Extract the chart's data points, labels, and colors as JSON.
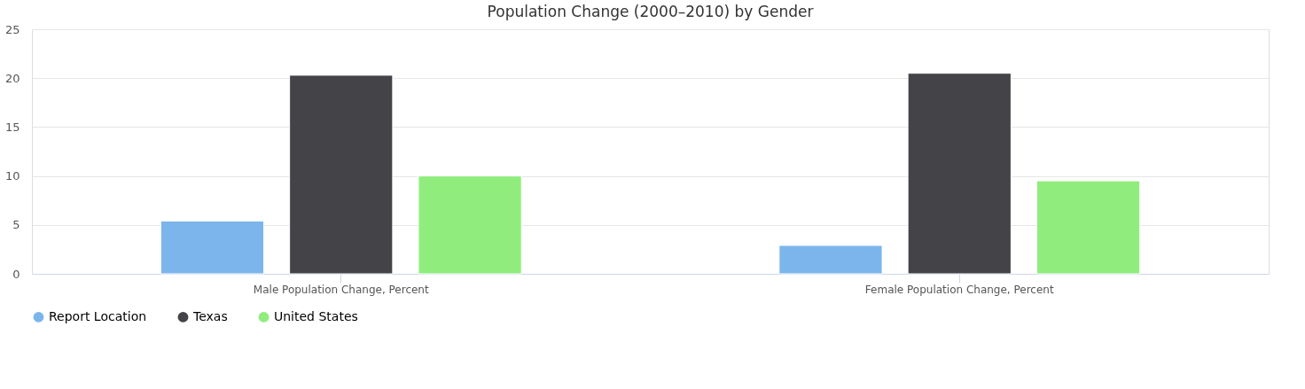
{
  "chart_data": {
    "type": "bar",
    "title": "Population Change (2000–2010) by Gender",
    "categories": [
      "Male Population Change, Percent",
      "Female Population Change, Percent"
    ],
    "series": [
      {
        "name": "Report Location",
        "color": "#7cb5ec",
        "values": [
          5.4,
          2.9
        ]
      },
      {
        "name": "Texas",
        "color": "#434348",
        "values": [
          20.3,
          20.5
        ]
      },
      {
        "name": "United States",
        "color": "#90ed7d",
        "values": [
          10.0,
          9.5
        ]
      }
    ],
    "ylim": [
      0,
      25
    ],
    "yticks": [
      0,
      5,
      10,
      15,
      20,
      25
    ],
    "grid": "y",
    "legend": "bottom"
  }
}
